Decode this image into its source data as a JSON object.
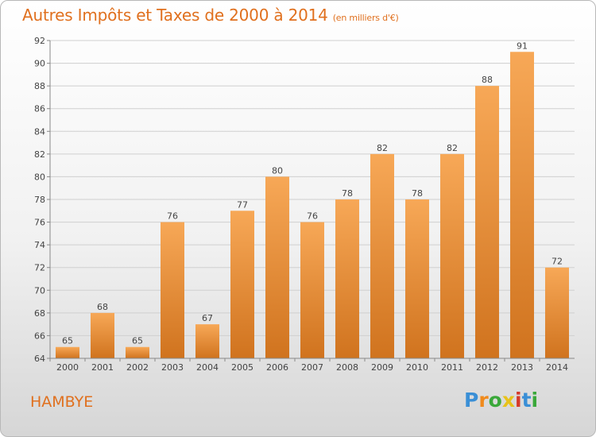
{
  "title": "Autres Impôts et Taxes de 2000 à 2014",
  "subtitle": "(en milliers d'€)",
  "footer": {
    "place_name": "HAMBYE"
  },
  "logo": {
    "letters": [
      "P",
      "r",
      "o",
      "x",
      "i",
      "t",
      "i"
    ],
    "colors": [
      "#3a8fd6",
      "#f08a1c",
      "#3aa83a",
      "#e8c21a",
      "#d63a2a",
      "#3a8fd6",
      "#3aa83a"
    ]
  },
  "colors": {
    "bar_top": "#f7a857",
    "bar_bottom": "#d0731e",
    "text": "#e0701e",
    "grid": "#cfcfcf"
  },
  "chart_data": {
    "type": "bar",
    "categories": [
      "2000",
      "2001",
      "2002",
      "2003",
      "2004",
      "2005",
      "2006",
      "2007",
      "2008",
      "2009",
      "2010",
      "2011",
      "2012",
      "2013",
      "2014"
    ],
    "values": [
      65,
      68,
      65,
      76,
      67,
      77,
      80,
      76,
      78,
      82,
      78,
      82,
      88,
      91,
      72
    ],
    "value_labels": [
      "65",
      "68",
      "65",
      "76",
      "67",
      "77",
      "80",
      "76",
      "78",
      "82",
      "78",
      "82",
      "88",
      "91",
      "72"
    ],
    "yticks": [
      "64",
      "66",
      "68",
      "70",
      "72",
      "74",
      "76",
      "78",
      "80",
      "82",
      "84",
      "86",
      "88",
      "90",
      "92"
    ],
    "ylim": [
      64,
      92
    ],
    "grid": true
  }
}
